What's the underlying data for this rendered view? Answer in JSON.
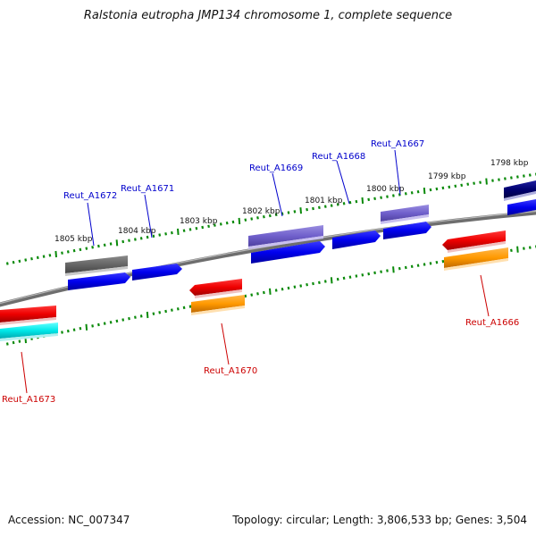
{
  "title": "Ralstonia eutropha JMP134 chromosome 1, complete sequence",
  "footer": {
    "accession": "Accession: NC_007347",
    "summary": "Topology: circular; Length: 3,806,533 bp; Genes: 3,504"
  },
  "scale_labels": [
    "1805 kbp",
    "1804 kbp",
    "1803 kbp",
    "1802 kbp",
    "1801 kbp",
    "1800 kbp",
    "1799 kbp",
    "1798 kbp"
  ],
  "genes": [
    {
      "name": "Reut_A1672",
      "strand": "top",
      "color": "#0000cc"
    },
    {
      "name": "Reut_A1671",
      "strand": "top",
      "color": "#0000cc"
    },
    {
      "name": "Reut_A1669",
      "strand": "top",
      "color": "#0000cc"
    },
    {
      "name": "Reut_A1668",
      "strand": "top",
      "color": "#0000cc"
    },
    {
      "name": "Reut_A1667",
      "strand": "top",
      "color": "#0000cc"
    },
    {
      "name": "Reut_A1673",
      "strand": "bottom",
      "color": "#cc0000"
    },
    {
      "name": "Reut_A1670",
      "strand": "bottom",
      "color": "#cc0000"
    },
    {
      "name": "Reut_A1666",
      "strand": "bottom",
      "color": "#cc0000"
    }
  ]
}
